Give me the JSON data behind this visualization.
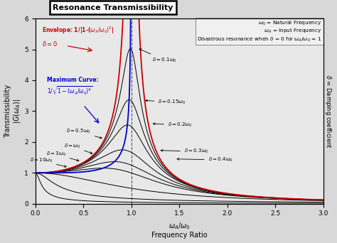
{
  "title": "Resonance Transmissibility",
  "xlabel_math": "$\\omega_A / \\omega_0$",
  "xlabel_sub": "Frequency Ratio",
  "ylabel": "Transmissibility\n$|G(\\omega_A)|$",
  "ylabel_right": "$\\delta$ = Damping coefficient",
  "xmin": 0.0,
  "xmax": 3.0,
  "ymin": 0.0,
  "ymax": 6.0,
  "damping_ratios": [
    0.1,
    0.15,
    0.2,
    0.3,
    0.4,
    0.5,
    1.0,
    3.0,
    10.0
  ],
  "envelope_color": "#cc0000",
  "max_curve_color": "#0000cc",
  "main_curve_color": "#000000",
  "fig_facecolor": "#d8d8d8",
  "ax_facecolor": "#e8e8e8",
  "title_facecolor": "#ffffff",
  "legend_facecolor": "#f0f0f0"
}
